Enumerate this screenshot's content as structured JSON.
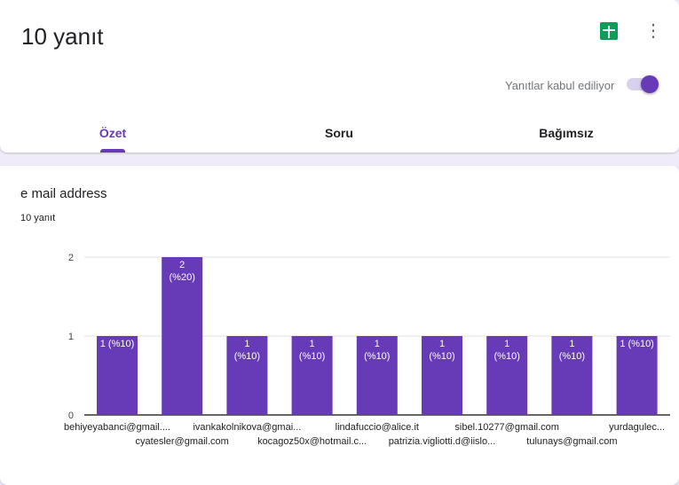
{
  "header": {
    "title": "10 yanıt",
    "sheets_icon": "google-sheets-icon",
    "more_icon": "more-vert-icon",
    "accepting_label": "Yanıtlar kabul ediliyor",
    "accepting": true,
    "accent": "#673ab7"
  },
  "tabs": [
    {
      "label": "Özet",
      "active": true
    },
    {
      "label": "Soru"
    },
    {
      "label": "Bağımsız"
    }
  ],
  "question": {
    "title": "e mail address",
    "count": "10 yanıt"
  },
  "chart_data": {
    "type": "bar",
    "ylim": [
      0,
      2
    ],
    "yticks": [
      "0",
      "1",
      "2"
    ],
    "color": "#673ab7",
    "categories": [
      "behiyeyabanci@gmail....",
      "cyatesler@gmail.com",
      "ivankakolnikova@gmai...",
      "kocagoz50x@hotmail.c...",
      "lindafuccio@alice.it",
      "patrizia.vigliotti.d@iislo...",
      "sibel.10277@gmail.com",
      "tulunays@gmail.com",
      "yurdagulec..."
    ],
    "values": [
      1,
      2,
      1,
      1,
      1,
      1,
      1,
      1,
      1
    ],
    "labels": [
      "1 (%10)",
      "2\n(%20)",
      "1\n(%10)",
      "1\n(%10)",
      "1\n(%10)",
      "1\n(%10)",
      "1\n(%10)",
      "1\n(%10)",
      "1 (%10)"
    ]
  }
}
